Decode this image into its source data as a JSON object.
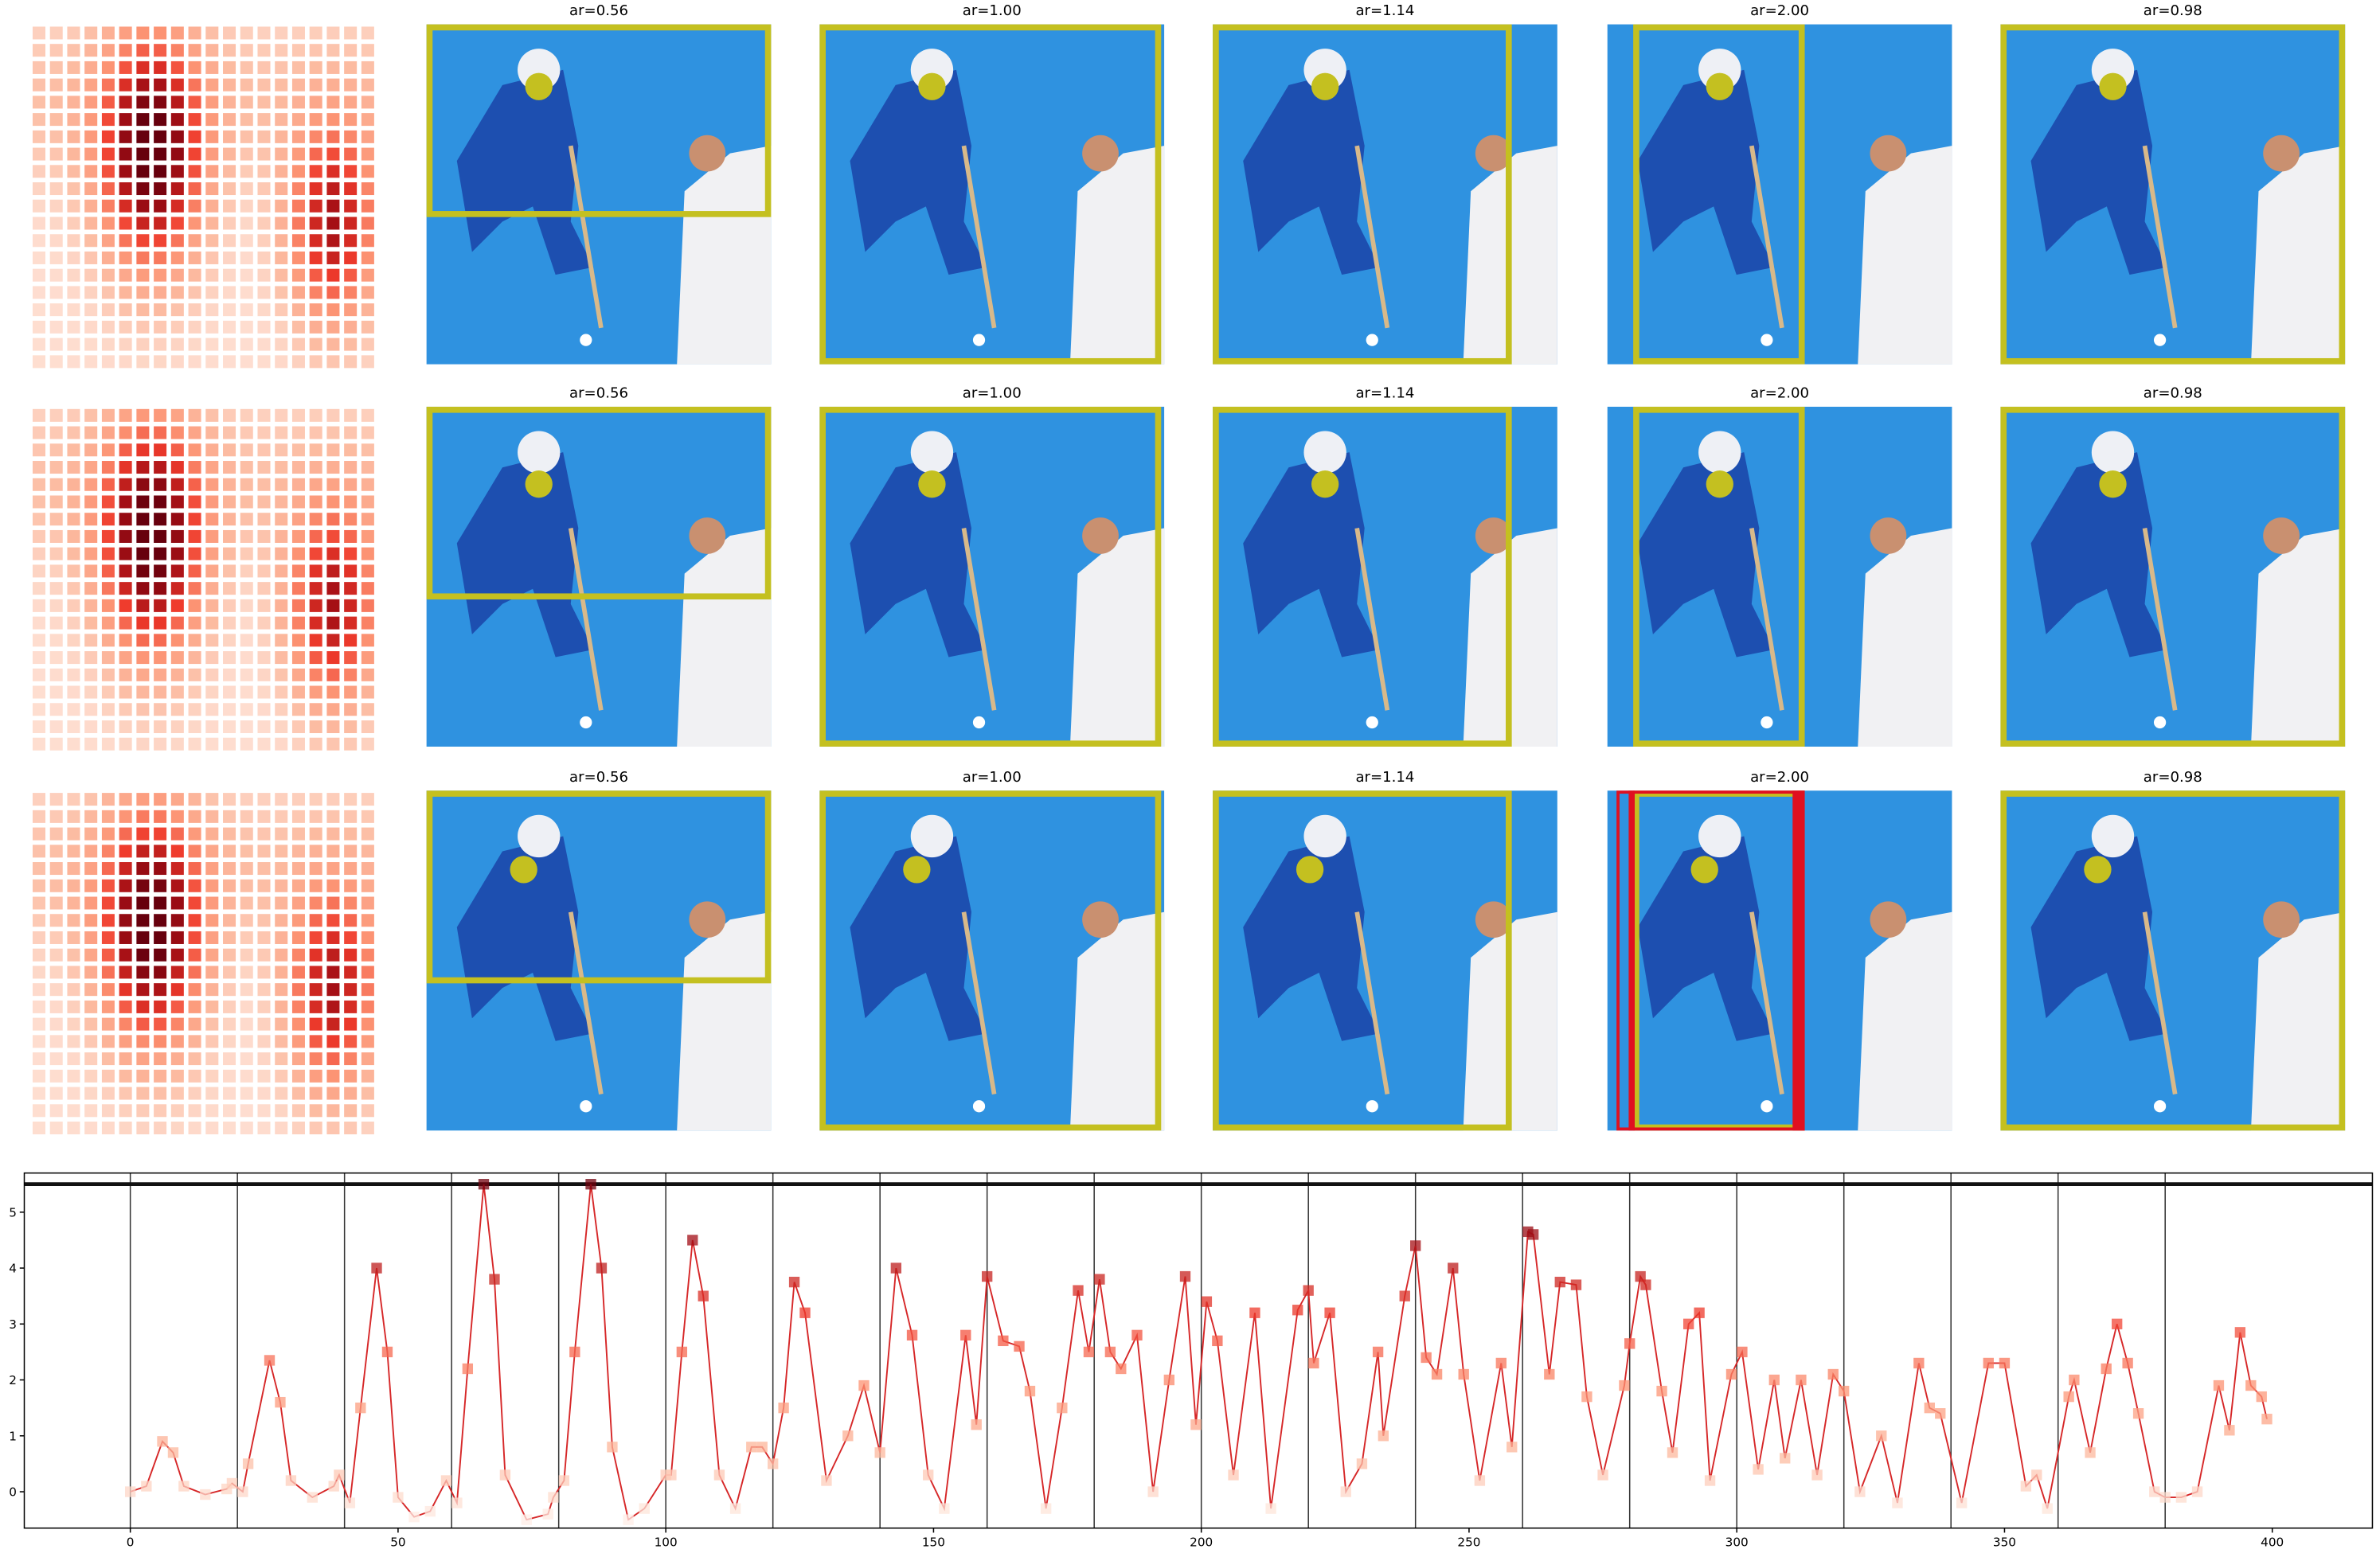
{
  "image_panels": {
    "titles": [
      [
        "ar=0.56",
        "ar=1.00",
        "ar=1.14",
        "ar=2.00",
        "ar=0.98"
      ],
      [
        "ar=0.56",
        "ar=1.00",
        "ar=1.14",
        "ar=2.00",
        "ar=0.98"
      ],
      [
        "ar=0.56",
        "ar=1.00",
        "ar=1.14",
        "ar=2.00",
        "ar=0.98"
      ]
    ]
  },
  "chart_data": {
    "type": "line",
    "x": [
      0,
      3,
      6,
      8,
      10,
      14,
      18,
      19,
      21,
      22,
      26,
      28,
      30,
      34,
      38,
      39,
      41,
      43,
      46,
      48,
      50,
      53,
      56,
      59,
      61,
      63,
      66,
      68,
      70,
      74,
      78,
      79,
      81,
      83,
      86,
      88,
      90,
      93,
      96,
      100,
      101,
      103,
      105,
      107,
      110,
      113,
      116,
      118,
      120,
      122,
      124,
      126,
      130,
      134,
      137,
      140,
      143,
      146,
      149,
      152,
      156,
      158,
      160,
      163,
      166,
      168,
      171,
      174,
      177,
      179,
      181,
      183,
      185,
      188,
      191,
      194,
      197,
      199,
      201,
      203,
      206,
      210,
      213,
      218,
      220,
      221,
      224,
      227,
      230,
      233,
      234,
      238,
      240,
      242,
      244,
      247,
      249,
      252,
      256,
      258,
      261,
      262,
      265,
      267,
      270,
      272,
      275,
      279,
      280,
      282,
      283,
      286,
      288,
      291,
      293,
      295,
      299,
      301,
      304,
      307,
      309,
      312,
      315,
      318,
      320,
      323,
      327,
      330,
      334,
      336,
      338,
      342,
      347,
      350,
      354,
      356,
      358,
      362,
      363,
      366,
      369,
      371,
      373,
      375,
      378,
      380,
      383,
      386,
      390,
      392,
      394,
      396,
      398,
      399
    ],
    "series": [
      {
        "color": "#d62728",
        "values": [
          0,
          0.1,
          0.9,
          0.7,
          0.1,
          -0.05,
          0.05,
          0.15,
          0,
          0.5,
          2.35,
          1.6,
          0.2,
          -0.1,
          0.1,
          0.3,
          -0.2,
          1.5,
          4.0,
          2.5,
          -0.1,
          -0.45,
          -0.35,
          0.2,
          -0.2,
          2.2,
          5.5,
          3.8,
          0.3,
          -0.5,
          -0.4,
          -0.1,
          0.2,
          2.5,
          5.5,
          4.0,
          0.8,
          -0.5,
          -0.3,
          0.3,
          0.3,
          2.5,
          4.5,
          3.5,
          0.3,
          -0.3,
          0.8,
          0.8,
          0.5,
          1.5,
          3.75,
          3.2,
          0.2,
          1.0,
          1.9,
          0.7,
          4.0,
          2.8,
          0.3,
          -0.3,
          2.8,
          1.2,
          3.85,
          2.7,
          2.6,
          1.8,
          -0.3,
          1.5,
          3.6,
          2.5,
          3.8,
          2.5,
          2.2,
          2.8,
          0,
          2.0,
          3.85,
          1.2,
          3.4,
          2.7,
          0.3,
          3.2,
          -0.3,
          3.25,
          3.6,
          2.3,
          3.2,
          0,
          0.5,
          2.5,
          1.0,
          3.5,
          4.4,
          2.4,
          2.1,
          4.0,
          2.1,
          0.2,
          2.3,
          0.8,
          4.65,
          4.6,
          2.1,
          3.75,
          3.7,
          1.7,
          0.3,
          1.9,
          2.65,
          3.85,
          3.7,
          1.8,
          0.7,
          3.0,
          3.2,
          0.2,
          2.1,
          2.5,
          0.4,
          2.0,
          0.6,
          2.0,
          0.3,
          2.1,
          1.8,
          0,
          1.0,
          -0.2,
          2.3,
          1.5,
          1.4,
          -0.2,
          2.3,
          2.3,
          0.1,
          0.3,
          -0.3,
          1.7,
          2.0,
          0.7,
          2.2,
          3.0,
          2.3,
          1.4,
          0,
          -0.1,
          -0.1,
          0,
          1.9,
          1.1,
          2.85,
          1.9,
          1.7,
          1.3
        ]
      }
    ],
    "vlines": [
      0,
      20,
      40,
      60,
      80,
      100,
      120,
      140,
      160,
      180,
      200,
      220,
      240,
      260,
      280,
      300,
      320,
      340,
      360,
      380
    ],
    "hline": 5.5,
    "xlim": [
      -19.8,
      418.7
    ],
    "ylim": [
      -0.65,
      5.7
    ],
    "xticks": [
      0,
      50,
      100,
      150,
      200,
      250,
      300,
      350,
      400
    ],
    "yticks": [
      0,
      1,
      2,
      3,
      4,
      5
    ]
  }
}
